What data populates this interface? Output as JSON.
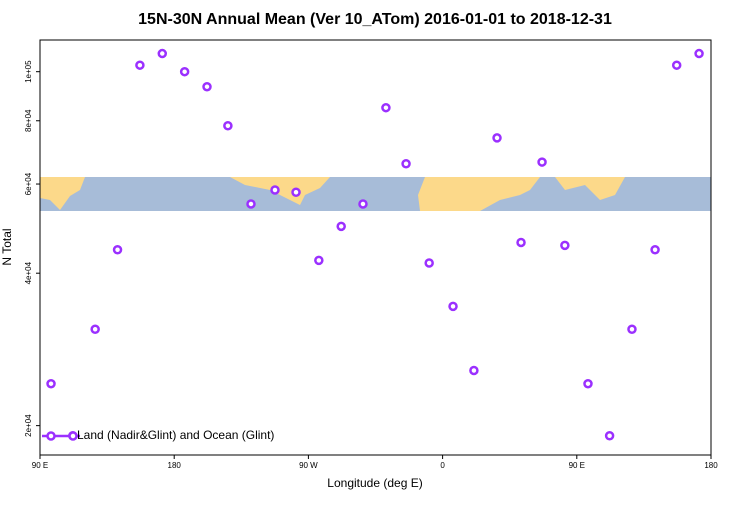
{
  "chart_data": {
    "type": "scatter",
    "title": "15N-30N Annual Mean (Ver 10_ATom)   2016-01-01 to 2018-12-31",
    "x_label": "Longitude (deg E)",
    "y_label": "N Total",
    "log_y": true,
    "xlim": [
      90,
      540
    ],
    "xticks": [
      {
        "value": 90,
        "label": "90 E"
      },
      180,
      {
        "value": 270,
        "label": "90 W"
      },
      {
        "value": 360,
        "label": "0"
      },
      {
        "value": 450,
        "label": "90 E"
      },
      {
        "value": 540,
        "label": "180"
      }
    ],
    "ylim": [
      17500,
      115500
    ],
    "yticks": [
      {
        "value": 20000,
        "label": "2e+04"
      },
      {
        "value": 40000,
        "label": "4e+04"
      },
      {
        "value": 60000,
        "label": "6e+04"
      },
      {
        "value": 80000,
        "label": "8e+04"
      },
      {
        "value": 100000,
        "label": "1e+05"
      }
    ],
    "legend": "bottom-left",
    "series": [
      {
        "name": "Land (Nadir&Glint) and Ocean (Glint)",
        "color": "#9b30ff",
        "x": [
          97.4,
          112,
          127,
          142,
          157,
          172,
          187,
          202,
          216,
          231.5,
          247.6,
          261.7,
          277,
          292,
          306.6,
          322,
          335.5,
          351,
          367,
          381,
          396.5,
          412.6,
          426.7,
          442,
          457.5,
          472,
          487,
          502.5,
          517,
          532
        ],
        "values": [
          24200,
          19100,
          31000,
          44500,
          103000,
          108600,
          100000,
          93400,
          78200,
          54800,
          58400,
          57800,
          42400,
          49500,
          54800,
          84900,
          65800,
          41900,
          34400,
          25700,
          74000,
          46000,
          66300,
          45400,
          24200,
          19100,
          31000,
          44500,
          103000,
          108600
        ]
      }
    ]
  }
}
